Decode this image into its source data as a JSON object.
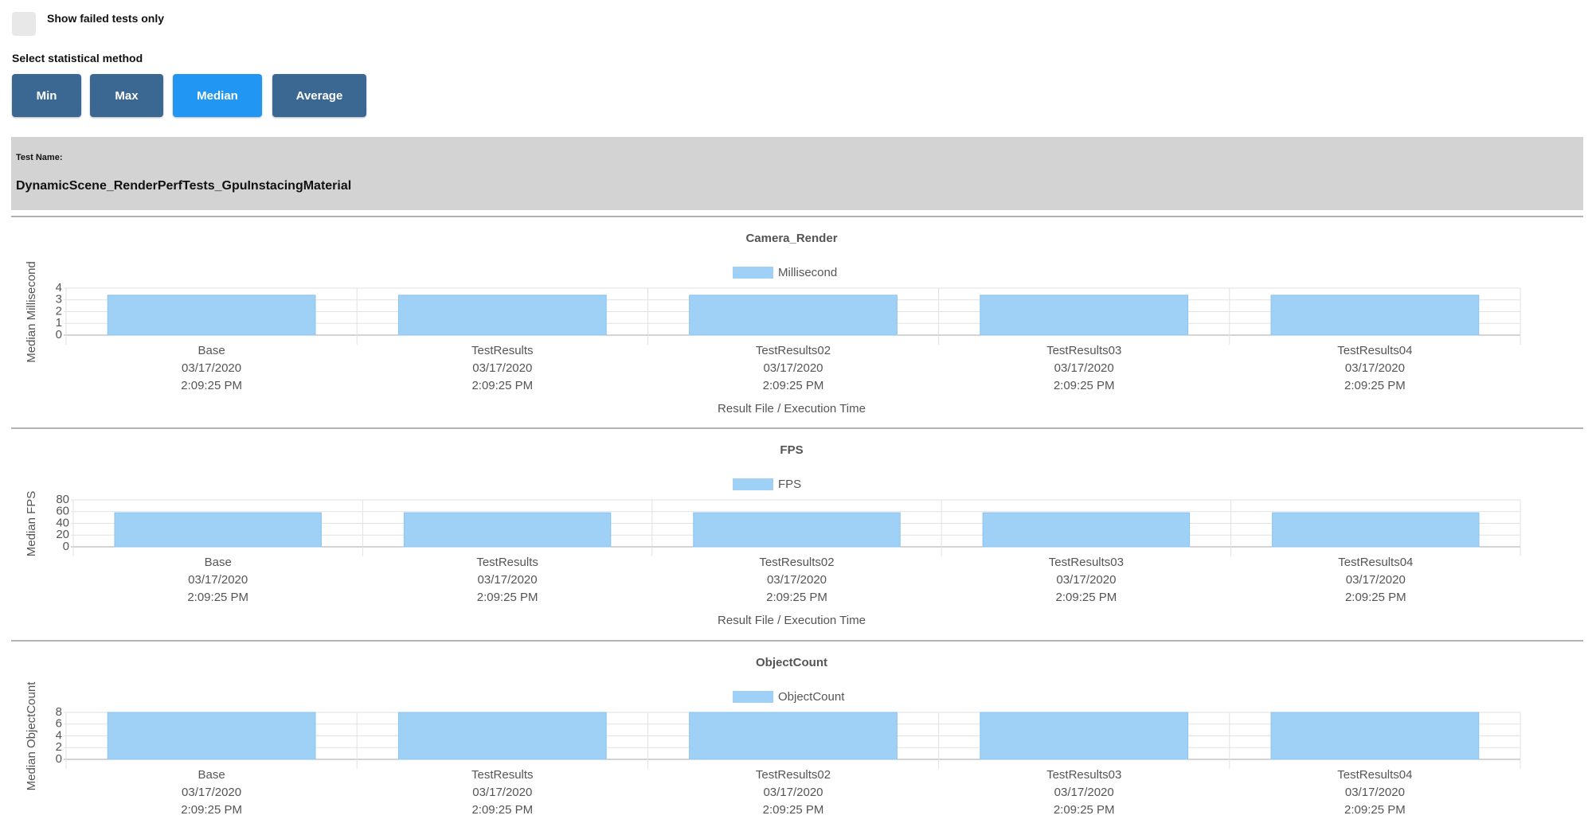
{
  "filter": {
    "label": "Show failed tests only"
  },
  "method": {
    "label": "Select statistical method",
    "buttons": [
      "Min",
      "Max",
      "Median",
      "Average"
    ],
    "active": 2
  },
  "test": {
    "label": "Test Name:",
    "name": "DynamicScene_RenderPerfTests_GpuInstacingMaterial"
  },
  "chart_data": [
    {
      "type": "bar",
      "title": "Camera_Render",
      "ylabel": "Median Millisecond",
      "xlabel": "Result File / Execution Time",
      "categories": [
        [
          "Base",
          "03/17/2020",
          "2:09:25 PM"
        ],
        [
          "TestResults",
          "03/17/2020",
          "2:09:25 PM"
        ],
        [
          "TestResults02",
          "03/17/2020",
          "2:09:25 PM"
        ],
        [
          "TestResults03",
          "03/17/2020",
          "2:09:25 PM"
        ],
        [
          "TestResults04",
          "03/17/2020",
          "2:09:25 PM"
        ]
      ],
      "series": [
        {
          "name": "Millisecond",
          "color": "#9fd0f5",
          "values": [
            3.4,
            3.4,
            3.4,
            3.4,
            3.4
          ]
        }
      ],
      "ylim": [
        0,
        4
      ],
      "yticks": [
        0,
        1,
        2,
        3,
        4
      ],
      "grid": true
    },
    {
      "type": "bar",
      "title": "FPS",
      "ylabel": "Median FPS",
      "xlabel": "Result File / Execution Time",
      "categories": [
        [
          "Base",
          "03/17/2020",
          "2:09:25 PM"
        ],
        [
          "TestResults",
          "03/17/2020",
          "2:09:25 PM"
        ],
        [
          "TestResults02",
          "03/17/2020",
          "2:09:25 PM"
        ],
        [
          "TestResults03",
          "03/17/2020",
          "2:09:25 PM"
        ],
        [
          "TestResults04",
          "03/17/2020",
          "2:09:25 PM"
        ]
      ],
      "series": [
        {
          "name": "FPS",
          "color": "#9fd0f5",
          "values": [
            58,
            58,
            58,
            58,
            58
          ]
        }
      ],
      "ylim": [
        0,
        80
      ],
      "yticks": [
        0,
        20,
        40,
        60,
        80
      ],
      "grid": true
    },
    {
      "type": "bar",
      "title": "ObjectCount",
      "ylabel": "Median ObjectCount",
      "categories": [
        [
          "Base",
          "03/17/2020",
          "2:09:25 PM"
        ],
        [
          "TestResults",
          "03/17/2020",
          "2:09:25 PM"
        ],
        [
          "TestResults02",
          "03/17/2020",
          "2:09:25 PM"
        ],
        [
          "TestResults03",
          "03/17/2020",
          "2:09:25 PM"
        ],
        [
          "TestResults04",
          "03/17/2020",
          "2:09:25 PM"
        ]
      ],
      "series": [
        {
          "name": "ObjectCount",
          "color": "#9fd0f5",
          "values": [
            8,
            8,
            8,
            8,
            8
          ]
        }
      ],
      "ylim": [
        0,
        8
      ],
      "yticks": [
        0,
        2,
        4,
        6,
        8
      ],
      "grid": true
    }
  ]
}
